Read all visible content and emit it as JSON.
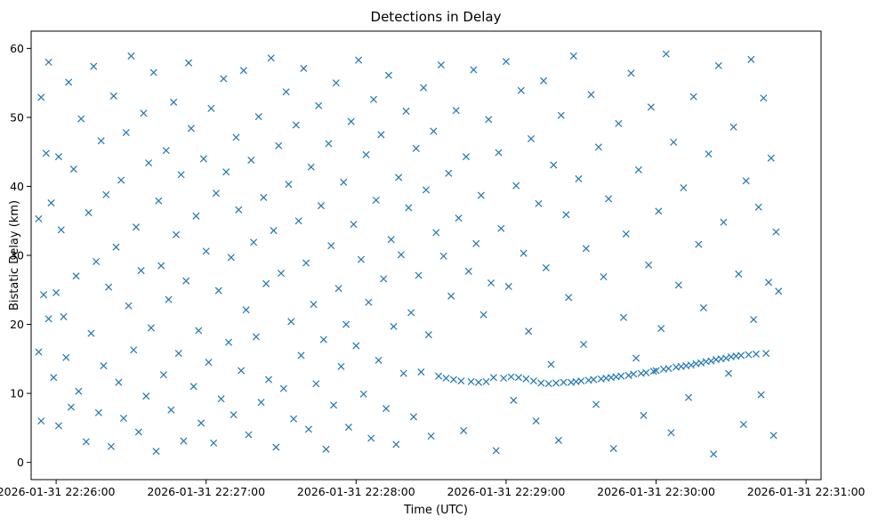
{
  "chart_data": {
    "type": "scatter",
    "title": "Detections in Delay",
    "xlabel": "Time (UTC)",
    "ylabel": "Bistatic Delay (km)",
    "marker": "x",
    "color": "#1f77b4",
    "grid": false,
    "x_axis_type": "datetime",
    "xlim": [
      "2026-01-31 22:25:50",
      "2026-01-31 22:31:06"
    ],
    "ylim": [
      -2.5,
      62.5
    ],
    "xticks": [
      {
        "value": "2026-01-31 22:26:00",
        "label": "2026-01-31 22:26:00"
      },
      {
        "value": "2026-01-31 22:27:00",
        "label": "2026-01-31 22:27:00"
      },
      {
        "value": "2026-01-31 22:28:00",
        "label": "2026-01-31 22:28:00"
      },
      {
        "value": "2026-01-31 22:29:00",
        "label": "2026-01-31 22:29:00"
      },
      {
        "value": "2026-01-31 22:30:00",
        "label": "2026-01-31 22:30:00"
      },
      {
        "value": "2026-01-31 22:31:00",
        "label": "2026-01-31 22:31:00"
      }
    ],
    "yticks": [
      {
        "value": 0,
        "label": "0"
      },
      {
        "value": 10,
        "label": "10"
      },
      {
        "value": 20,
        "label": "20"
      },
      {
        "value": 30,
        "label": "30"
      },
      {
        "value": 40,
        "label": "40"
      },
      {
        "value": 50,
        "label": "50"
      },
      {
        "value": 60,
        "label": "60"
      }
    ],
    "series": [
      {
        "x": [
          "2026-01-31 22:25:53",
          "2026-01-31 22:25:53",
          "2026-01-31 22:25:54",
          "2026-01-31 22:25:54",
          "2026-01-31 22:25:55",
          "2026-01-31 22:25:56",
          "2026-01-31 22:25:57",
          "2026-01-31 22:25:57",
          "2026-01-31 22:25:58",
          "2026-01-31 22:25:59",
          "2026-01-31 22:26:00",
          "2026-01-31 22:26:01",
          "2026-01-31 22:26:01",
          "2026-01-31 22:26:02",
          "2026-01-31 22:26:03",
          "2026-01-31 22:26:04",
          "2026-01-31 22:26:05",
          "2026-01-31 22:26:06",
          "2026-01-31 22:26:07",
          "2026-01-31 22:26:08",
          "2026-01-31 22:26:09",
          "2026-01-31 22:26:10",
          "2026-01-31 22:26:12",
          "2026-01-31 22:26:13",
          "2026-01-31 22:26:14",
          "2026-01-31 22:26:15",
          "2026-01-31 22:26:16",
          "2026-01-31 22:26:17",
          "2026-01-31 22:26:18",
          "2026-01-31 22:26:19",
          "2026-01-31 22:26:20",
          "2026-01-31 22:26:21",
          "2026-01-31 22:26:22",
          "2026-01-31 22:26:23",
          "2026-01-31 22:26:24",
          "2026-01-31 22:26:25",
          "2026-01-31 22:26:26",
          "2026-01-31 22:26:27",
          "2026-01-31 22:26:28",
          "2026-01-31 22:26:29",
          "2026-01-31 22:26:30",
          "2026-01-31 22:26:31",
          "2026-01-31 22:26:32",
          "2026-01-31 22:26:33",
          "2026-01-31 22:26:34",
          "2026-01-31 22:26:35",
          "2026-01-31 22:26:36",
          "2026-01-31 22:26:37",
          "2026-01-31 22:26:38",
          "2026-01-31 22:26:39",
          "2026-01-31 22:26:40",
          "2026-01-31 22:26:41",
          "2026-01-31 22:26:42",
          "2026-01-31 22:26:43",
          "2026-01-31 22:26:44",
          "2026-01-31 22:26:45",
          "2026-01-31 22:26:46",
          "2026-01-31 22:26:47",
          "2026-01-31 22:26:48",
          "2026-01-31 22:26:49",
          "2026-01-31 22:26:50",
          "2026-01-31 22:26:51",
          "2026-01-31 22:26:52",
          "2026-01-31 22:26:53",
          "2026-01-31 22:26:54",
          "2026-01-31 22:26:55",
          "2026-01-31 22:26:56",
          "2026-01-31 22:26:57",
          "2026-01-31 22:26:58",
          "2026-01-31 22:26:59",
          "2026-01-31 22:27:00",
          "2026-01-31 22:27:01",
          "2026-01-31 22:27:02",
          "2026-01-31 22:27:03",
          "2026-01-31 22:27:04",
          "2026-01-31 22:27:05",
          "2026-01-31 22:27:06",
          "2026-01-31 22:27:07",
          "2026-01-31 22:27:08",
          "2026-01-31 22:27:09",
          "2026-01-31 22:27:10",
          "2026-01-31 22:27:11",
          "2026-01-31 22:27:12",
          "2026-01-31 22:27:13",
          "2026-01-31 22:27:14",
          "2026-01-31 22:27:15",
          "2026-01-31 22:27:16",
          "2026-01-31 22:27:17",
          "2026-01-31 22:27:18",
          "2026-01-31 22:27:19",
          "2026-01-31 22:27:20",
          "2026-01-31 22:27:21",
          "2026-01-31 22:27:22",
          "2026-01-31 22:27:23",
          "2026-01-31 22:27:24",
          "2026-01-31 22:27:25",
          "2026-01-31 22:27:26",
          "2026-01-31 22:27:27",
          "2026-01-31 22:27:28",
          "2026-01-31 22:27:29",
          "2026-01-31 22:27:30",
          "2026-01-31 22:27:31",
          "2026-01-31 22:27:32",
          "2026-01-31 22:27:33",
          "2026-01-31 22:27:34",
          "2026-01-31 22:27:35",
          "2026-01-31 22:27:36",
          "2026-01-31 22:27:37",
          "2026-01-31 22:27:38",
          "2026-01-31 22:27:39",
          "2026-01-31 22:27:40",
          "2026-01-31 22:27:41",
          "2026-01-31 22:27:42",
          "2026-01-31 22:27:43",
          "2026-01-31 22:27:44",
          "2026-01-31 22:27:45",
          "2026-01-31 22:27:46",
          "2026-01-31 22:27:47",
          "2026-01-31 22:27:48",
          "2026-01-31 22:27:49",
          "2026-01-31 22:27:50",
          "2026-01-31 22:27:51",
          "2026-01-31 22:27:52",
          "2026-01-31 22:27:53",
          "2026-01-31 22:27:54",
          "2026-01-31 22:27:55",
          "2026-01-31 22:27:56",
          "2026-01-31 22:27:57",
          "2026-01-31 22:27:58",
          "2026-01-31 22:27:59",
          "2026-01-31 22:28:00",
          "2026-01-31 22:28:01",
          "2026-01-31 22:28:02",
          "2026-01-31 22:28:03",
          "2026-01-31 22:28:04",
          "2026-01-31 22:28:05",
          "2026-01-31 22:28:06",
          "2026-01-31 22:28:07",
          "2026-01-31 22:28:08",
          "2026-01-31 22:28:09",
          "2026-01-31 22:28:10",
          "2026-01-31 22:28:11",
          "2026-01-31 22:28:12",
          "2026-01-31 22:28:13",
          "2026-01-31 22:28:14",
          "2026-01-31 22:28:15",
          "2026-01-31 22:28:16",
          "2026-01-31 22:28:17",
          "2026-01-31 22:28:18",
          "2026-01-31 22:28:19",
          "2026-01-31 22:28:20",
          "2026-01-31 22:28:21",
          "2026-01-31 22:28:22",
          "2026-01-31 22:28:23",
          "2026-01-31 22:28:24",
          "2026-01-31 22:28:25",
          "2026-01-31 22:28:26",
          "2026-01-31 22:28:27",
          "2026-01-31 22:28:28",
          "2026-01-31 22:28:29",
          "2026-01-31 22:28:30",
          "2026-01-31 22:28:31",
          "2026-01-31 22:28:32",
          "2026-01-31 22:28:33",
          "2026-01-31 22:28:34",
          "2026-01-31 22:28:35",
          "2026-01-31 22:28:36",
          "2026-01-31 22:28:37",
          "2026-01-31 22:28:38",
          "2026-01-31 22:28:39",
          "2026-01-31 22:28:40",
          "2026-01-31 22:28:41",
          "2026-01-31 22:28:42",
          "2026-01-31 22:28:43",
          "2026-01-31 22:28:44",
          "2026-01-31 22:28:45",
          "2026-01-31 22:28:46",
          "2026-01-31 22:28:47",
          "2026-01-31 22:28:48",
          "2026-01-31 22:28:49",
          "2026-01-31 22:28:50",
          "2026-01-31 22:28:51",
          "2026-01-31 22:28:52",
          "2026-01-31 22:28:53",
          "2026-01-31 22:28:54",
          "2026-01-31 22:28:55",
          "2026-01-31 22:28:56",
          "2026-01-31 22:28:57",
          "2026-01-31 22:28:58",
          "2026-01-31 22:28:59",
          "2026-01-31 22:29:00",
          "2026-01-31 22:29:01",
          "2026-01-31 22:29:02",
          "2026-01-31 22:29:03",
          "2026-01-31 22:29:04",
          "2026-01-31 22:29:05",
          "2026-01-31 22:29:06",
          "2026-01-31 22:29:07",
          "2026-01-31 22:29:08",
          "2026-01-31 22:29:09",
          "2026-01-31 22:29:10",
          "2026-01-31 22:29:11",
          "2026-01-31 22:29:12",
          "2026-01-31 22:29:13",
          "2026-01-31 22:29:14",
          "2026-01-31 22:29:15",
          "2026-01-31 22:29:16",
          "2026-01-31 22:29:17",
          "2026-01-31 22:29:18",
          "2026-01-31 22:29:19",
          "2026-01-31 22:29:20",
          "2026-01-31 22:29:21",
          "2026-01-31 22:29:22",
          "2026-01-31 22:29:23",
          "2026-01-31 22:29:24",
          "2026-01-31 22:29:25",
          "2026-01-31 22:29:26",
          "2026-01-31 22:29:27",
          "2026-01-31 22:29:28",
          "2026-01-31 22:29:29",
          "2026-01-31 22:29:30",
          "2026-01-31 22:29:31",
          "2026-01-31 22:29:32",
          "2026-01-31 22:29:33",
          "2026-01-31 22:29:34",
          "2026-01-31 22:29:35",
          "2026-01-31 22:29:36",
          "2026-01-31 22:29:37",
          "2026-01-31 22:29:38",
          "2026-01-31 22:29:39",
          "2026-01-31 22:29:40",
          "2026-01-31 22:29:41",
          "2026-01-31 22:29:42",
          "2026-01-31 22:29:43",
          "2026-01-31 22:29:44",
          "2026-01-31 22:29:45",
          "2026-01-31 22:29:46",
          "2026-01-31 22:29:47",
          "2026-01-31 22:29:48",
          "2026-01-31 22:29:49",
          "2026-01-31 22:29:50",
          "2026-01-31 22:29:51",
          "2026-01-31 22:29:52",
          "2026-01-31 22:29:53",
          "2026-01-31 22:29:54",
          "2026-01-31 22:29:55",
          "2026-01-31 22:29:56",
          "2026-01-31 22:29:57",
          "2026-01-31 22:29:58",
          "2026-01-31 22:29:59",
          "2026-01-31 22:30:00",
          "2026-01-31 22:30:01",
          "2026-01-31 22:30:02",
          "2026-01-31 22:30:03",
          "2026-01-31 22:30:04",
          "2026-01-31 22:30:05",
          "2026-01-31 22:30:06",
          "2026-01-31 22:30:07",
          "2026-01-31 22:30:08",
          "2026-01-31 22:30:09",
          "2026-01-31 22:30:10",
          "2026-01-31 22:30:11",
          "2026-01-31 22:30:12",
          "2026-01-31 22:30:13",
          "2026-01-31 22:30:14",
          "2026-01-31 22:30:15",
          "2026-01-31 22:30:16",
          "2026-01-31 22:30:17",
          "2026-01-31 22:30:18",
          "2026-01-31 22:30:19",
          "2026-01-31 22:30:20",
          "2026-01-31 22:30:21",
          "2026-01-31 22:30:22",
          "2026-01-31 22:30:23",
          "2026-01-31 22:30:24",
          "2026-01-31 22:30:25",
          "2026-01-31 22:30:26",
          "2026-01-31 22:30:27",
          "2026-01-31 22:30:28",
          "2026-01-31 22:30:29",
          "2026-01-31 22:30:30",
          "2026-01-31 22:30:31",
          "2026-01-31 22:30:32",
          "2026-01-31 22:30:33",
          "2026-01-31 22:30:34",
          "2026-01-31 22:30:35",
          "2026-01-31 22:30:36",
          "2026-01-31 22:30:37",
          "2026-01-31 22:30:38",
          "2026-01-31 22:30:39",
          "2026-01-31 22:30:40",
          "2026-01-31 22:30:41",
          "2026-01-31 22:30:42",
          "2026-01-31 22:30:43",
          "2026-01-31 22:30:44",
          "2026-01-31 22:30:45",
          "2026-01-31 22:30:46",
          "2026-01-31 22:30:47",
          "2026-01-31 22:30:48",
          "2026-01-31 22:30:49"
        ],
        "y": [
          35.3,
          16.0,
          6.0,
          52.9,
          24.3,
          44.8,
          20.8,
          58.0,
          37.6,
          12.3,
          24.6,
          44.3,
          5.3,
          33.7,
          21.1,
          15.2,
          55.1,
          8.0,
          42.5,
          27.0,
          10.3,
          49.8,
          3.0,
          36.2,
          18.7,
          57.4,
          29.1,
          7.2,
          46.6,
          14.0,
          38.8,
          25.4,
          2.3,
          53.1,
          31.2,
          11.6,
          40.9,
          6.4,
          47.8,
          22.7,
          58.9,
          16.3,
          34.1,
          4.4,
          27.8,
          50.6,
          9.6,
          43.4,
          19.5,
          56.5,
          1.6,
          37.9,
          28.5,
          12.7,
          45.2,
          23.6,
          7.6,
          52.2,
          33.0,
          15.8,
          41.7,
          3.1,
          26.3,
          57.9,
          48.4,
          11.0,
          35.7,
          19.1,
          5.7,
          44.0,
          30.6,
          14.5,
          51.3,
          2.8,
          39.0,
          24.9,
          9.2,
          55.6,
          42.1,
          17.4,
          29.7,
          6.9,
          47.1,
          36.6,
          13.3,
          56.8,
          22.1,
          4.0,
          43.8,
          31.9,
          18.2,
          50.1,
          8.7,
          38.4,
          25.9,
          12.0,
          58.6,
          33.6,
          2.2,
          45.9,
          27.4,
          10.7,
          53.7,
          40.3,
          20.4,
          6.3,
          48.9,
          35.0,
          15.5,
          57.1,
          28.9,
          4.8,
          42.8,
          22.9,
          11.4,
          51.7,
          37.2,
          17.8,
          1.9,
          46.2,
          31.4,
          8.3,
          55.0,
          25.2,
          13.9,
          40.6,
          20.0,
          5.1,
          49.4,
          34.5,
          16.9,
          58.3,
          29.4,
          9.9,
          44.6,
          23.2,
          3.5,
          52.6,
          38.0,
          14.8,
          47.5,
          26.6,
          7.8,
          56.1,
          32.3,
          19.7,
          2.6,
          41.3,
          30.1,
          12.9,
          50.9,
          36.9,
          21.7,
          6.6,
          45.5,
          27.1,
          13.1,
          54.3,
          39.5,
          18.5,
          3.8,
          48.0,
          33.3,
          12.5,
          57.6,
          29.9,
          12.2,
          41.9,
          24.1,
          12.0,
          51.0,
          35.4,
          11.8,
          4.6,
          44.3,
          27.7,
          11.7,
          56.9,
          31.7,
          11.6,
          38.7,
          21.4,
          11.7,
          49.7,
          26.0,
          12.3,
          1.7,
          44.9,
          33.9,
          12.2,
          58.1,
          25.5,
          12.4,
          9.0,
          40.1,
          12.3,
          53.9,
          30.3,
          12.1,
          19.0,
          46.9,
          11.8,
          6.0,
          37.5,
          11.5,
          55.3,
          28.2,
          11.4,
          14.2,
          43.1,
          11.5,
          3.2,
          50.3,
          11.6,
          35.9,
          23.9,
          11.6,
          58.9,
          11.7,
          41.1,
          11.8,
          17.1,
          31.0,
          11.9,
          53.3,
          12.0,
          8.4,
          45.7,
          12.1,
          26.9,
          12.2,
          38.2,
          12.3,
          2.0,
          12.4,
          49.1,
          12.5,
          21.0,
          33.1,
          12.6,
          56.4,
          12.8,
          15.1,
          42.4,
          12.9,
          6.8,
          13.0,
          28.6,
          51.5,
          13.2,
          13.3,
          36.4,
          19.4,
          13.5,
          59.2,
          13.6,
          4.3,
          46.4,
          13.8,
          25.7,
          13.9,
          39.8,
          14.0,
          9.4,
          14.1,
          53.0,
          14.3,
          31.6,
          14.4,
          22.4,
          14.6,
          44.7,
          14.7,
          1.2,
          14.9,
          57.5,
          15.0,
          34.8,
          15.1,
          12.9,
          15.3,
          48.6,
          15.4,
          27.3,
          15.5,
          5.5,
          40.8,
          15.6,
          58.4,
          20.7,
          15.7,
          37.0,
          9.8,
          52.8,
          15.8,
          26.1,
          44.1,
          3.9,
          33.4,
          24.8
        ]
      }
    ]
  }
}
